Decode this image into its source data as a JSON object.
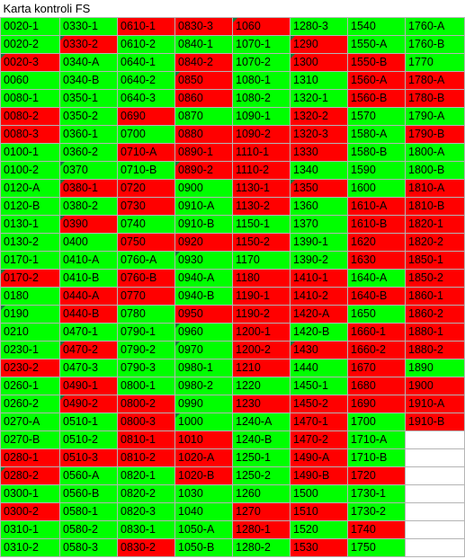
{
  "colors": {
    "ok": "#00ff00",
    "fail": "#ff0000",
    "flag": "#0f7f3a",
    "grid": "#b4b4b4"
  },
  "sheet": {
    "title": "Karta kontroli FS",
    "columns": [
      [
        {
          "t": "0020-1",
          "s": "g"
        },
        {
          "t": "0020-2",
          "s": "g"
        },
        {
          "t": "0020-3",
          "s": "r",
          "f": 1
        },
        {
          "t": "0060",
          "s": "g"
        },
        {
          "t": "0080-1",
          "s": "g"
        },
        {
          "t": "0080-2",
          "s": "r"
        },
        {
          "t": "0080-3",
          "s": "r"
        },
        {
          "t": "0100-1",
          "s": "g"
        },
        {
          "t": "0100-2",
          "s": "g"
        },
        {
          "t": "0120-A",
          "s": "g"
        },
        {
          "t": "0120-B",
          "s": "g"
        },
        {
          "t": "0130-1",
          "s": "g"
        },
        {
          "t": "0130-2",
          "s": "g"
        },
        {
          "t": "0170-1",
          "s": "g"
        },
        {
          "t": "0170-2",
          "s": "r",
          "f": 1
        },
        {
          "t": "0180",
          "s": "g"
        },
        {
          "t": "0190",
          "s": "g",
          "f": 1
        },
        {
          "t": "0210",
          "s": "g"
        },
        {
          "t": "0230-1",
          "s": "g"
        },
        {
          "t": "0230-2",
          "s": "r"
        },
        {
          "t": "0260-1",
          "s": "g"
        },
        {
          "t": "0260-2",
          "s": "g"
        },
        {
          "t": "0270-A",
          "s": "g"
        },
        {
          "t": "0270-B",
          "s": "g"
        },
        {
          "t": "0280-1",
          "s": "r"
        },
        {
          "t": "0280-2",
          "s": "r",
          "f": 1
        },
        {
          "t": "0300-1",
          "s": "g"
        },
        {
          "t": "0300-2",
          "s": "r"
        },
        {
          "t": "0310-1",
          "s": "g"
        },
        {
          "t": "0310-2",
          "s": "g"
        }
      ],
      [
        {
          "t": "0330-1",
          "s": "g"
        },
        {
          "t": "0330-2",
          "s": "r",
          "f": 1
        },
        {
          "t": "0340-A",
          "s": "g"
        },
        {
          "t": "0340-B",
          "s": "g"
        },
        {
          "t": "0350-1",
          "s": "g"
        },
        {
          "t": "0350-2",
          "s": "g"
        },
        {
          "t": "0360-1",
          "s": "g"
        },
        {
          "t": "0360-2",
          "s": "g"
        },
        {
          "t": "0370",
          "s": "g",
          "f": 1
        },
        {
          "t": "0380-1",
          "s": "r",
          "f": 1
        },
        {
          "t": "0380-2",
          "s": "g"
        },
        {
          "t": "0390",
          "s": "r",
          "f": 1
        },
        {
          "t": "0400",
          "s": "g"
        },
        {
          "t": "0410-A",
          "s": "g"
        },
        {
          "t": "0410-B",
          "s": "g"
        },
        {
          "t": "0440-A",
          "s": "r"
        },
        {
          "t": "0440-B",
          "s": "r"
        },
        {
          "t": "0470-1",
          "s": "g"
        },
        {
          "t": "0470-2",
          "s": "r",
          "f": 1
        },
        {
          "t": "0470-3",
          "s": "g"
        },
        {
          "t": "0490-1",
          "s": "r"
        },
        {
          "t": "0490-2",
          "s": "r",
          "f": 1
        },
        {
          "t": "0510-1",
          "s": "g"
        },
        {
          "t": "0510-2",
          "s": "g"
        },
        {
          "t": "0510-3",
          "s": "r"
        },
        {
          "t": "0560-A",
          "s": "g"
        },
        {
          "t": "0560-B",
          "s": "g"
        },
        {
          "t": "0580-1",
          "s": "g"
        },
        {
          "t": "0580-2",
          "s": "g"
        },
        {
          "t": "0580-3",
          "s": "g"
        }
      ],
      [
        {
          "t": "0610-1",
          "s": "r"
        },
        {
          "t": "0610-2",
          "s": "g"
        },
        {
          "t": "0640-1",
          "s": "g"
        },
        {
          "t": "0640-2",
          "s": "g"
        },
        {
          "t": "0640-3",
          "s": "g"
        },
        {
          "t": "0690",
          "s": "r"
        },
        {
          "t": "0700",
          "s": "g"
        },
        {
          "t": "0710-A",
          "s": "r"
        },
        {
          "t": "0710-B",
          "s": "g"
        },
        {
          "t": "0720",
          "s": "r"
        },
        {
          "t": "0730",
          "s": "r"
        },
        {
          "t": "0740",
          "s": "g"
        },
        {
          "t": "0750",
          "s": "r"
        },
        {
          "t": "0760-A",
          "s": "g"
        },
        {
          "t": "0760-B",
          "s": "r"
        },
        {
          "t": "0770",
          "s": "r"
        },
        {
          "t": "0780",
          "s": "g"
        },
        {
          "t": "0790-1",
          "s": "g"
        },
        {
          "t": "0790-2",
          "s": "g"
        },
        {
          "t": "0790-3",
          "s": "g"
        },
        {
          "t": "0800-1",
          "s": "g"
        },
        {
          "t": "0800-2",
          "s": "r"
        },
        {
          "t": "0800-3",
          "s": "r"
        },
        {
          "t": "0810-1",
          "s": "r"
        },
        {
          "t": "0810-2",
          "s": "r"
        },
        {
          "t": "0820-1",
          "s": "g"
        },
        {
          "t": "0820-2",
          "s": "g"
        },
        {
          "t": "0820-3",
          "s": "g"
        },
        {
          "t": "0830-1",
          "s": "g"
        },
        {
          "t": "0830-2",
          "s": "r"
        }
      ],
      [
        {
          "t": "0830-3",
          "s": "r"
        },
        {
          "t": "0840-1",
          "s": "g"
        },
        {
          "t": "0840-2",
          "s": "r"
        },
        {
          "t": "0850",
          "s": "r",
          "f": 1
        },
        {
          "t": "0860",
          "s": "r"
        },
        {
          "t": "0870",
          "s": "g"
        },
        {
          "t": "0880",
          "s": "r"
        },
        {
          "t": "0890-1",
          "s": "r"
        },
        {
          "t": "0890-2",
          "s": "r",
          "f": 1
        },
        {
          "t": "0900",
          "s": "g"
        },
        {
          "t": "0910-A",
          "s": "g"
        },
        {
          "t": "0910-B",
          "s": "g"
        },
        {
          "t": "0920",
          "s": "r"
        },
        {
          "t": "0930",
          "s": "g",
          "f": 1
        },
        {
          "t": "0940-A",
          "s": "g"
        },
        {
          "t": "0940-B",
          "s": "g"
        },
        {
          "t": "0950",
          "s": "r"
        },
        {
          "t": "0960",
          "s": "g",
          "f": 1
        },
        {
          "t": "0970",
          "s": "g",
          "f": 1
        },
        {
          "t": "0980-1",
          "s": "g"
        },
        {
          "t": "0980-2",
          "s": "g"
        },
        {
          "t": "0990",
          "s": "g"
        },
        {
          "t": "1000",
          "s": "g",
          "f": 1
        },
        {
          "t": "1010",
          "s": "r"
        },
        {
          "t": "1020-A",
          "s": "r"
        },
        {
          "t": "1020-B",
          "s": "r"
        },
        {
          "t": "1030",
          "s": "g"
        },
        {
          "t": "1040",
          "s": "g"
        },
        {
          "t": "1050-A",
          "s": "g"
        },
        {
          "t": "1050-B",
          "s": "g"
        }
      ],
      [
        {
          "t": "1060",
          "s": "r",
          "f": 1
        },
        {
          "t": "1070-1",
          "s": "g"
        },
        {
          "t": "1070-2",
          "s": "g"
        },
        {
          "t": "1080-1",
          "s": "g"
        },
        {
          "t": "1080-2",
          "s": "g"
        },
        {
          "t": "1090-1",
          "s": "g"
        },
        {
          "t": "1090-2",
          "s": "r"
        },
        {
          "t": "1110-1",
          "s": "r"
        },
        {
          "t": "1110-2",
          "s": "r"
        },
        {
          "t": "1130-1",
          "s": "r"
        },
        {
          "t": "1130-2",
          "s": "r"
        },
        {
          "t": "1150-1",
          "s": "g"
        },
        {
          "t": "1150-2",
          "s": "r"
        },
        {
          "t": "1170",
          "s": "g"
        },
        {
          "t": "1180",
          "s": "r"
        },
        {
          "t": "1190-1",
          "s": "r"
        },
        {
          "t": "1190-2",
          "s": "r"
        },
        {
          "t": "1200-1",
          "s": "r"
        },
        {
          "t": "1200-2",
          "s": "r"
        },
        {
          "t": "1210",
          "s": "r"
        },
        {
          "t": "1220",
          "s": "g"
        },
        {
          "t": "1230",
          "s": "r"
        },
        {
          "t": "1240-A",
          "s": "g"
        },
        {
          "t": "1240-B",
          "s": "g"
        },
        {
          "t": "1250-1",
          "s": "g"
        },
        {
          "t": "1250-2",
          "s": "g"
        },
        {
          "t": "1260",
          "s": "g"
        },
        {
          "t": "1270",
          "s": "r"
        },
        {
          "t": "1280-1",
          "s": "r"
        },
        {
          "t": "1280-2",
          "s": "g"
        }
      ],
      [
        {
          "t": "1280-3",
          "s": "g"
        },
        {
          "t": "1290",
          "s": "r",
          "f": 1
        },
        {
          "t": "1300",
          "s": "r",
          "f": 1
        },
        {
          "t": "1310",
          "s": "g"
        },
        {
          "t": "1320-1",
          "s": "g"
        },
        {
          "t": "1320-2",
          "s": "r"
        },
        {
          "t": "1320-3",
          "s": "r"
        },
        {
          "t": "1330",
          "s": "r"
        },
        {
          "t": "1340",
          "s": "g"
        },
        {
          "t": "1350",
          "s": "r",
          "f": 1
        },
        {
          "t": "1360",
          "s": "g"
        },
        {
          "t": "1370",
          "s": "g"
        },
        {
          "t": "1390-1",
          "s": "g"
        },
        {
          "t": "1390-2",
          "s": "g"
        },
        {
          "t": "1410-1",
          "s": "r"
        },
        {
          "t": "1410-2",
          "s": "r"
        },
        {
          "t": "1420-A",
          "s": "r"
        },
        {
          "t": "1420-B",
          "s": "g"
        },
        {
          "t": "1430",
          "s": "r",
          "f": 1
        },
        {
          "t": "1440",
          "s": "g"
        },
        {
          "t": "1450-1",
          "s": "g"
        },
        {
          "t": "1450-2",
          "s": "r"
        },
        {
          "t": "1470-1",
          "s": "r"
        },
        {
          "t": "1470-2",
          "s": "r"
        },
        {
          "t": "1490-A",
          "s": "r"
        },
        {
          "t": "1490-B",
          "s": "r"
        },
        {
          "t": "1500",
          "s": "g"
        },
        {
          "t": "1510",
          "s": "r"
        },
        {
          "t": "1520",
          "s": "g"
        },
        {
          "t": "1530",
          "s": "r"
        }
      ],
      [
        {
          "t": "1540",
          "s": "g"
        },
        {
          "t": "1550-A",
          "s": "g"
        },
        {
          "t": "1550-B",
          "s": "r"
        },
        {
          "t": "1560-A",
          "s": "r"
        },
        {
          "t": "1560-B",
          "s": "r"
        },
        {
          "t": "1570",
          "s": "g"
        },
        {
          "t": "1580-A",
          "s": "g"
        },
        {
          "t": "1580-B",
          "s": "g"
        },
        {
          "t": "1590",
          "s": "g"
        },
        {
          "t": "1600",
          "s": "g"
        },
        {
          "t": "1610-A",
          "s": "r"
        },
        {
          "t": "1610-B",
          "s": "r"
        },
        {
          "t": "1620",
          "s": "r"
        },
        {
          "t": "1630",
          "s": "r"
        },
        {
          "t": "1640-A",
          "s": "g"
        },
        {
          "t": "1640-B",
          "s": "r"
        },
        {
          "t": "1650",
          "s": "g"
        },
        {
          "t": "1660-1",
          "s": "r"
        },
        {
          "t": "1660-2",
          "s": "r"
        },
        {
          "t": "1670",
          "s": "r"
        },
        {
          "t": "1680",
          "s": "r"
        },
        {
          "t": "1690",
          "s": "r"
        },
        {
          "t": "1700",
          "s": "g"
        },
        {
          "t": "1710-A",
          "s": "g"
        },
        {
          "t": "1710-B",
          "s": "g"
        },
        {
          "t": "1720",
          "s": "r"
        },
        {
          "t": "1730-1",
          "s": "g"
        },
        {
          "t": "1730-2",
          "s": "g"
        },
        {
          "t": "1740",
          "s": "r"
        },
        {
          "t": "1750",
          "s": "g"
        }
      ],
      [
        {
          "t": "1760-A",
          "s": "g"
        },
        {
          "t": "1760-B",
          "s": "g"
        },
        {
          "t": "1770",
          "s": "g"
        },
        {
          "t": "1780-A",
          "s": "r"
        },
        {
          "t": "1780-B",
          "s": "r"
        },
        {
          "t": "1790-A",
          "s": "g"
        },
        {
          "t": "1790-B",
          "s": "r"
        },
        {
          "t": "1800-A",
          "s": "g"
        },
        {
          "t": "1800-B",
          "s": "g"
        },
        {
          "t": "1810-A",
          "s": "r"
        },
        {
          "t": "1810-B",
          "s": "r"
        },
        {
          "t": "1820-1",
          "s": "r"
        },
        {
          "t": "1820-2",
          "s": "r"
        },
        {
          "t": "1850-1",
          "s": "r"
        },
        {
          "t": "1850-2",
          "s": "r"
        },
        {
          "t": "1860-1",
          "s": "r"
        },
        {
          "t": "1860-2",
          "s": "r"
        },
        {
          "t": "1880-1",
          "s": "r"
        },
        {
          "t": "1880-2",
          "s": "r"
        },
        {
          "t": "1890",
          "s": "g"
        },
        {
          "t": "1900",
          "s": "r"
        },
        {
          "t": "1910-A",
          "s": "r"
        },
        {
          "t": "1910-B",
          "s": "r"
        }
      ]
    ]
  }
}
